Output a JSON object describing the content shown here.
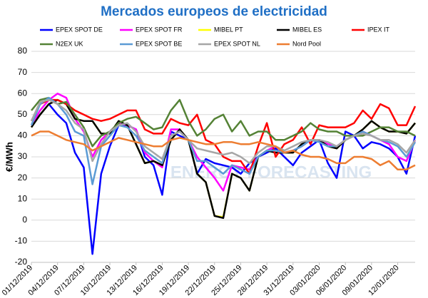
{
  "chart_data": {
    "type": "line",
    "title": "Mercados europeos de electricidad",
    "y_label": "€/MWh",
    "watermark": "ENERGY FORECASTING",
    "categories": [
      "01/12/2019",
      null,
      null,
      "04/12/2019",
      null,
      null,
      "07/12/2019",
      null,
      null,
      "10/12/2019",
      null,
      null,
      "13/12/2019",
      null,
      null,
      "16/12/2019",
      null,
      null,
      "19/12/2019",
      null,
      null,
      "22/12/2019",
      null,
      null,
      "25/12/2019",
      null,
      null,
      "28/12/2019",
      null,
      null,
      "31/12/2019",
      null,
      null,
      "03/01/2020",
      null,
      null,
      "06/01/2020",
      null,
      null,
      "09/01/2020",
      null,
      null,
      "12/01/2020",
      null,
      null
    ],
    "ylim": [
      -20,
      80
    ],
    "yticks": [
      -20,
      -10,
      0,
      10,
      20,
      30,
      40,
      50,
      60,
      70,
      80
    ],
    "grid": true,
    "series": [
      {
        "name": "EPEX SPOT DE",
        "color": "#0000ff",
        "values": [
          45,
          50,
          55,
          50,
          46,
          32,
          25,
          -16,
          22,
          35,
          45,
          45,
          43,
          30,
          26,
          12,
          42,
          40,
          38,
          22,
          29,
          27,
          26,
          25,
          22,
          27,
          30,
          32,
          34,
          30,
          26,
          32,
          35,
          38,
          27,
          20,
          42,
          40,
          34,
          37,
          36,
          34,
          30,
          22,
          40
        ]
      },
      {
        "name": "EPEX SPOT FR",
        "color": "#ff00ff",
        "values": [
          45,
          52,
          57,
          60,
          58,
          48,
          42,
          30,
          38,
          42,
          46,
          45,
          43,
          32,
          28,
          25,
          43,
          43,
          38,
          30,
          25,
          20,
          14,
          26,
          25,
          24,
          30,
          33,
          35,
          32,
          33,
          35,
          38,
          38,
          36,
          35,
          38,
          40,
          42,
          40,
          38,
          36,
          30,
          28,
          38
        ]
      },
      {
        "name": "MIBEL PT",
        "color": "#ffff00",
        "values": [
          44,
          50,
          55,
          57,
          55,
          48,
          47,
          47,
          41,
          41,
          47,
          45,
          36,
          27,
          28,
          26,
          38,
          43,
          38,
          22,
          18,
          2,
          1.5,
          22,
          20,
          14,
          30,
          33,
          32,
          32,
          32,
          36,
          38,
          38,
          35,
          34,
          38,
          40,
          43,
          47,
          44,
          42,
          42,
          41,
          46
        ]
      },
      {
        "name": "MIBEL ES",
        "color": "#000000",
        "values": [
          44,
          50,
          55,
          57,
          55,
          48,
          47,
          47,
          41,
          41,
          47,
          45,
          36,
          27,
          28,
          26,
          38,
          43,
          38,
          22,
          18,
          2,
          1,
          22,
          20,
          14,
          30,
          33,
          32,
          32,
          32,
          36,
          38,
          38,
          35,
          34,
          38,
          40,
          43,
          47,
          44,
          42,
          42,
          41,
          46
        ]
      },
      {
        "name": "IPEX IT",
        "color": "#ff0000",
        "values": [
          47,
          55,
          57,
          57,
          55,
          52,
          50,
          48,
          47,
          48,
          50,
          52,
          52,
          43,
          41,
          41,
          48,
          46,
          45,
          50,
          38,
          36,
          30,
          28,
          28,
          22,
          35,
          46,
          30,
          36,
          38,
          44,
          36,
          45,
          44,
          44,
          44,
          46,
          52,
          48,
          55,
          53,
          45,
          45,
          54
        ]
      },
      {
        "name": "N2EX UK",
        "color": "#548235",
        "values": [
          52,
          57,
          58,
          55,
          56,
          50,
          44,
          35,
          40,
          42,
          46,
          48,
          49,
          46,
          43,
          44,
          52,
          57,
          47,
          40,
          43,
          48,
          50,
          42,
          47,
          40,
          42,
          42,
          38,
          38,
          40,
          42,
          46,
          43,
          42,
          42,
          40,
          40,
          40,
          42,
          44,
          44,
          42,
          42,
          40
        ]
      },
      {
        "name": "EPEX SPOT BE",
        "color": "#5b9bd5",
        "values": [
          45,
          55,
          58,
          55,
          50,
          42,
          40,
          17,
          35,
          40,
          45,
          44,
          40,
          33,
          30,
          27,
          40,
          42,
          38,
          28,
          28,
          25,
          22,
          26,
          24,
          22,
          30,
          33,
          33,
          32,
          33,
          35,
          38,
          37,
          35,
          35,
          38,
          40,
          42,
          40,
          38,
          37,
          35,
          30,
          37
        ]
      },
      {
        "name": "EPEX SPOT NL",
        "color": "#a6a6a6",
        "values": [
          47,
          56,
          57,
          55,
          52,
          46,
          43,
          28,
          36,
          42,
          45,
          46,
          42,
          35,
          32,
          29,
          40,
          42,
          38,
          34,
          33,
          32,
          31,
          32,
          30,
          27,
          32,
          35,
          35,
          33,
          35,
          37,
          38,
          38,
          37,
          35,
          38,
          40,
          41,
          40,
          38,
          38,
          36,
          32,
          38
        ]
      },
      {
        "name": "Nord Pool",
        "color": "#ed7d31",
        "values": [
          40,
          42,
          42,
          40,
          38,
          37,
          36,
          33,
          35,
          37,
          39,
          38,
          37,
          36,
          35,
          35,
          38,
          39,
          38,
          37,
          36,
          36,
          37,
          37,
          36,
          36,
          37,
          36,
          35,
          32,
          33,
          31,
          30,
          30,
          29,
          27,
          27,
          30,
          30,
          29,
          26,
          28,
          24,
          24,
          26
        ]
      }
    ]
  }
}
